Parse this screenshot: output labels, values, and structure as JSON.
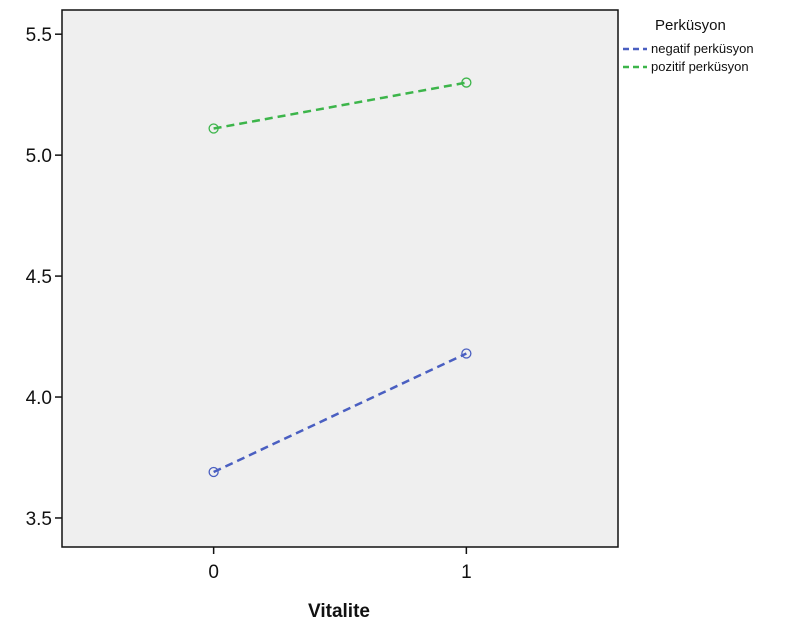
{
  "chart_data": {
    "type": "line",
    "title": "",
    "xlabel": "Vitalite",
    "ylabel": "",
    "x": [
      0,
      1
    ],
    "x_tick_labels": [
      "0",
      "1"
    ],
    "xlim": [
      -0.6,
      1.6
    ],
    "y_ticks": [
      "3.5",
      "4.0",
      "4.5",
      "5.0",
      "5.5"
    ],
    "y_tick_values": [
      3.5,
      4.0,
      4.5,
      5.0,
      5.5
    ],
    "ylim": [
      3.38,
      5.6
    ],
    "grid": false,
    "plot_background": "#efefef",
    "legend": {
      "title": "Perküsyon",
      "position": "outside-right-top"
    },
    "series": [
      {
        "name": "negatif perküsyon",
        "values": [
          3.69,
          4.18
        ],
        "color": "#4a5fc1",
        "line_style": "dashed",
        "marker": "open-circle"
      },
      {
        "name": "pozitif perküsyon",
        "values": [
          5.11,
          5.3
        ],
        "color": "#3cb54a",
        "line_style": "dashed",
        "marker": "open-circle"
      }
    ]
  }
}
